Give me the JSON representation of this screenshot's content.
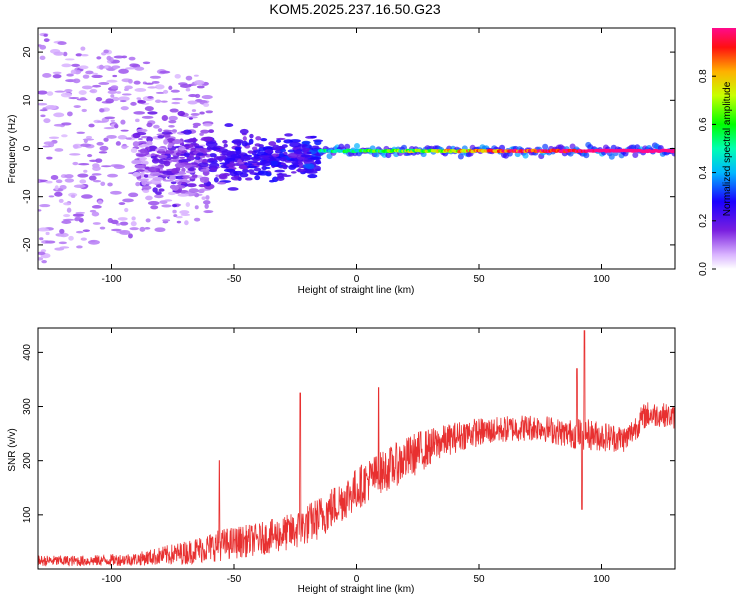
{
  "title": "KOM5.2025.237.16.50.G23",
  "colors": {
    "snr_line": "#e83030",
    "background": "#ffffff",
    "axis": "#000000"
  },
  "chart_data": [
    {
      "type": "heatmap",
      "name": "spectrogram",
      "xlabel": "Height of straight line (km)",
      "ylabel": "Frequency (Hz)",
      "xlim": [
        -130,
        130
      ],
      "ylim": [
        -25,
        25
      ],
      "xticks": [
        -100,
        -50,
        0,
        50,
        100
      ],
      "xtick_labels": [
        "-100",
        "-50",
        "0",
        "50",
        "100"
      ],
      "yticks": [
        -20,
        -10,
        0,
        10,
        20
      ],
      "ytick_labels": [
        "-20",
        "-10",
        "0",
        "10",
        "20"
      ],
      "colorbar": {
        "label": "Normalized spectral amplitude",
        "range": [
          0,
          1
        ],
        "ticks": [
          0,
          0.2,
          0.4,
          0.6,
          0.8
        ],
        "tick_labels": [
          "0.0",
          "0.2",
          "0.4",
          "0.6",
          "0.8"
        ],
        "colormap": "rainbow"
      },
      "features": [
        {
          "x_range": [
            -130,
            -60
          ],
          "freq_spread_hz": 24,
          "amplitude": 0.05,
          "description": "scattered low-amplitude noise"
        },
        {
          "x_range": [
            -90,
            -15
          ],
          "freq_center_hz": -2,
          "freq_spread_hz": 8,
          "amplitude": 0.15
        },
        {
          "x_range": [
            -15,
            130
          ],
          "freq_center_hz": -0.5,
          "freq_spread_hz": 1,
          "amplitude": 0.95,
          "description": "strong narrow carrier line"
        }
      ]
    },
    {
      "type": "line",
      "name": "snr",
      "xlabel": "Height of straight line (km)",
      "ylabel": "SNR (v/v)",
      "xlim": [
        -130,
        130
      ],
      "ylim": [
        0,
        445
      ],
      "xticks": [
        -100,
        -50,
        0,
        50,
        100
      ],
      "xtick_labels": [
        "-100",
        "-50",
        "0",
        "50",
        "100"
      ],
      "yticks": [
        100,
        200,
        300,
        400
      ],
      "ytick_labels": [
        "100",
        "200",
        "300",
        "400"
      ],
      "trend": {
        "x": [
          -130,
          -110,
          -90,
          -70,
          -55,
          -40,
          -25,
          -15,
          -5,
          5,
          15,
          25,
          35,
          45,
          55,
          65,
          75,
          85,
          92,
          100,
          110,
          118,
          125,
          130
        ],
        "y": [
          15,
          15,
          18,
          30,
          45,
          55,
          70,
          95,
          130,
          165,
          190,
          215,
          235,
          250,
          255,
          260,
          262,
          250,
          250,
          245,
          240,
          285,
          285,
          280
        ],
        "noise": [
          10,
          10,
          12,
          22,
          30,
          30,
          35,
          40,
          40,
          40,
          40,
          40,
          30,
          28,
          25,
          25,
          25,
          25,
          30,
          28,
          25,
          25,
          22,
          22
        ]
      },
      "spikes": [
        {
          "x": -56,
          "y": 200
        },
        {
          "x": -23,
          "y": 325
        },
        {
          "x": 9,
          "y": 335
        },
        {
          "x": 93,
          "y": 440
        },
        {
          "x": 92,
          "y": 110
        },
        {
          "x": 90,
          "y": 370
        }
      ]
    }
  ]
}
